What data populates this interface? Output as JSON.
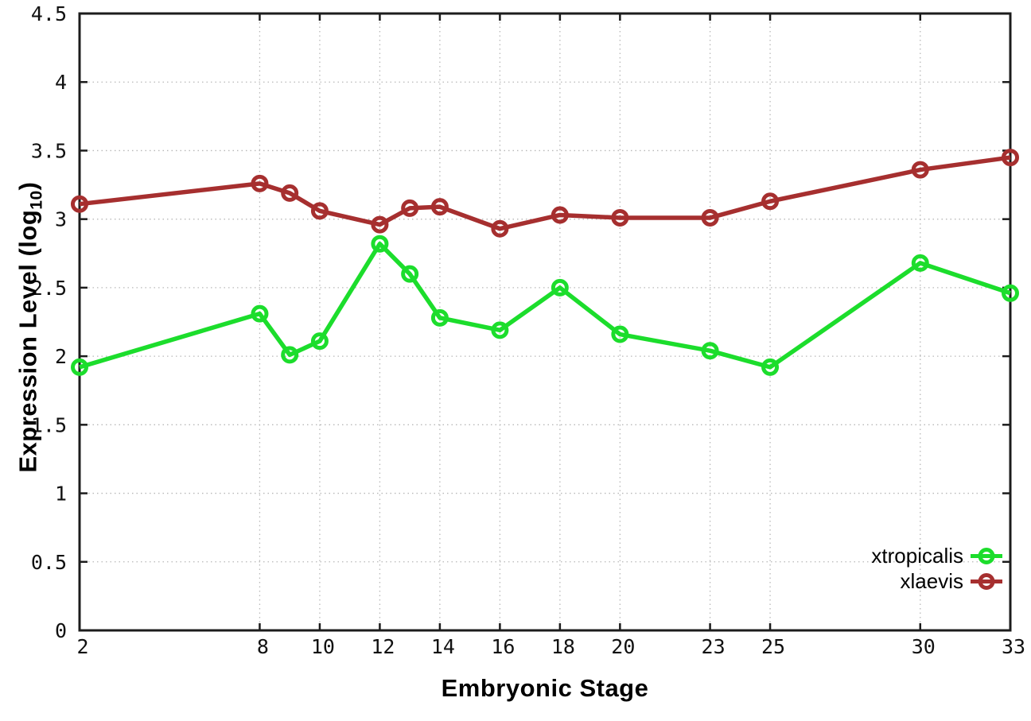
{
  "chart_data": {
    "type": "line",
    "title": "",
    "xlabel": "Embryonic Stage",
    "ylabel": {
      "text": "Expression Level (log",
      "sub": "10",
      "suffix": ")"
    },
    "x": [
      2,
      8,
      9,
      10,
      12,
      13,
      14,
      16,
      18,
      20,
      23,
      25,
      30,
      33
    ],
    "series": [
      {
        "name": "xtropicalis",
        "color": "#1cdd2c",
        "values": [
          1.92,
          2.31,
          2.01,
          2.11,
          2.82,
          2.6,
          2.28,
          2.19,
          2.5,
          2.16,
          2.04,
          1.92,
          2.68,
          2.46
        ]
      },
      {
        "name": "xlaevis",
        "color": "#a62f2f",
        "values": [
          3.11,
          3.26,
          3.19,
          3.06,
          2.96,
          3.08,
          3.09,
          2.93,
          3.03,
          3.01,
          3.01,
          3.13,
          3.36,
          3.45
        ]
      }
    ],
    "xlim": [
      2,
      33
    ],
    "ylim": [
      0,
      4.5
    ],
    "x_tick_values": [
      2,
      8,
      10,
      12,
      14,
      16,
      18,
      20,
      23,
      25,
      30,
      33
    ],
    "x_tick_labels": [
      "2",
      "8",
      "10",
      "12",
      "14",
      "16",
      "18",
      "20",
      "23",
      "25",
      "30",
      "33"
    ],
    "y_tick_values": [
      0,
      0.5,
      1,
      1.5,
      2,
      2.5,
      3,
      3.5,
      4,
      4.5
    ],
    "y_tick_labels": [
      "0",
      "0.5",
      "1",
      "1.5",
      "2",
      "2.5",
      "3",
      "3.5",
      "4",
      "4.5"
    ],
    "grid": true,
    "legend_position": "bottom-right-inside"
  },
  "colors": {
    "grid": "#b8b8b8",
    "axis": "#1c1c1c",
    "tick_text": "#111111"
  }
}
